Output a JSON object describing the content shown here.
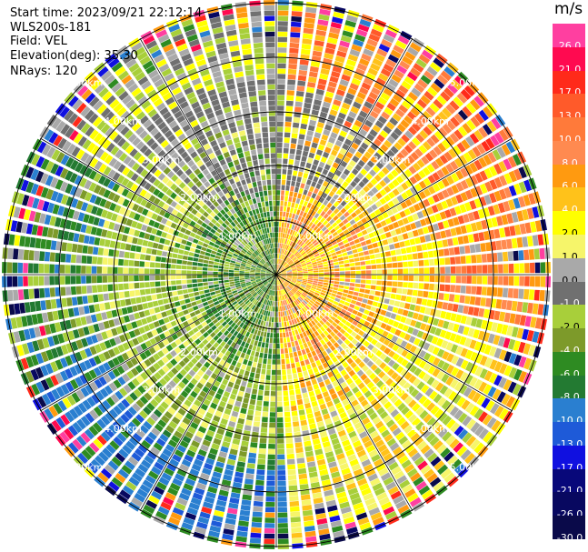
{
  "info": {
    "start_time": "Start time: 2023/09/21 22:12:14",
    "instrument": "WLS200s-181",
    "field": "Field: VEL",
    "elevation": "Elevation(deg): 35.30",
    "nrays": "NRays: 120"
  },
  "colorbar": {
    "unit": "m/s",
    "bins": [
      {
        "label": "26.0",
        "color": "#ff3fa0",
        "text_color": "#ffffff"
      },
      {
        "label": "21.0",
        "color": "#ff0a50",
        "text_color": "#ffffff"
      },
      {
        "label": "17.0",
        "color": "#ff2a1a",
        "text_color": "#ffffff"
      },
      {
        "label": "13.0",
        "color": "#ff5a2a",
        "text_color": "#ffffff"
      },
      {
        "label": "10.0",
        "color": "#ff7a3a",
        "text_color": "#ffffff"
      },
      {
        "label": "8.0",
        "color": "#ff8a50",
        "text_color": "#ffffff"
      },
      {
        "label": "6.0",
        "color": "#ff9a10",
        "text_color": "#ffffff"
      },
      {
        "label": "4.0",
        "color": "#ffc21a",
        "text_color": "#ffffff"
      },
      {
        "label": "2.0",
        "color": "#ffff00",
        "text_color": "#000000"
      },
      {
        "label": "1.0",
        "color": "#f6f56a",
        "text_color": "#000000"
      },
      {
        "label": "0.0",
        "color": "#a9a9a9",
        "text_color": "#000000"
      },
      {
        "label": "-1.0",
        "color": "#707070",
        "text_color": "#ffffff"
      },
      {
        "label": "-2.0",
        "color": "#a8cf3a",
        "text_color": "#000000"
      },
      {
        "label": "-4.0",
        "color": "#7d9a2a",
        "text_color": "#ffffff"
      },
      {
        "label": "-6.0",
        "color": "#2e8b22",
        "text_color": "#ffffff"
      },
      {
        "label": "-8.0",
        "color": "#237a32",
        "text_color": "#ffffff"
      },
      {
        "label": "-10.0",
        "color": "#2a7fd0",
        "text_color": "#ffffff"
      },
      {
        "label": "-13.0",
        "color": "#1e5ad8",
        "text_color": "#ffffff"
      },
      {
        "label": "-17.0",
        "color": "#1010e0",
        "text_color": "#ffffff"
      },
      {
        "label": "-21.0",
        "color": "#08087a",
        "text_color": "#ffffff"
      },
      {
        "label": "-26.0",
        "color": "#080860",
        "text_color": "#ffffff"
      },
      {
        "label": "-30.0",
        "color": "#0a0a4a",
        "text_color": "#ffffff"
      }
    ]
  },
  "range_rings": [
    {
      "label": "1.00km"
    },
    {
      "label": "2.00km"
    },
    {
      "label": "3.00km"
    },
    {
      "label": "4.00km"
    },
    {
      "label": "5.00km"
    }
  ]
}
